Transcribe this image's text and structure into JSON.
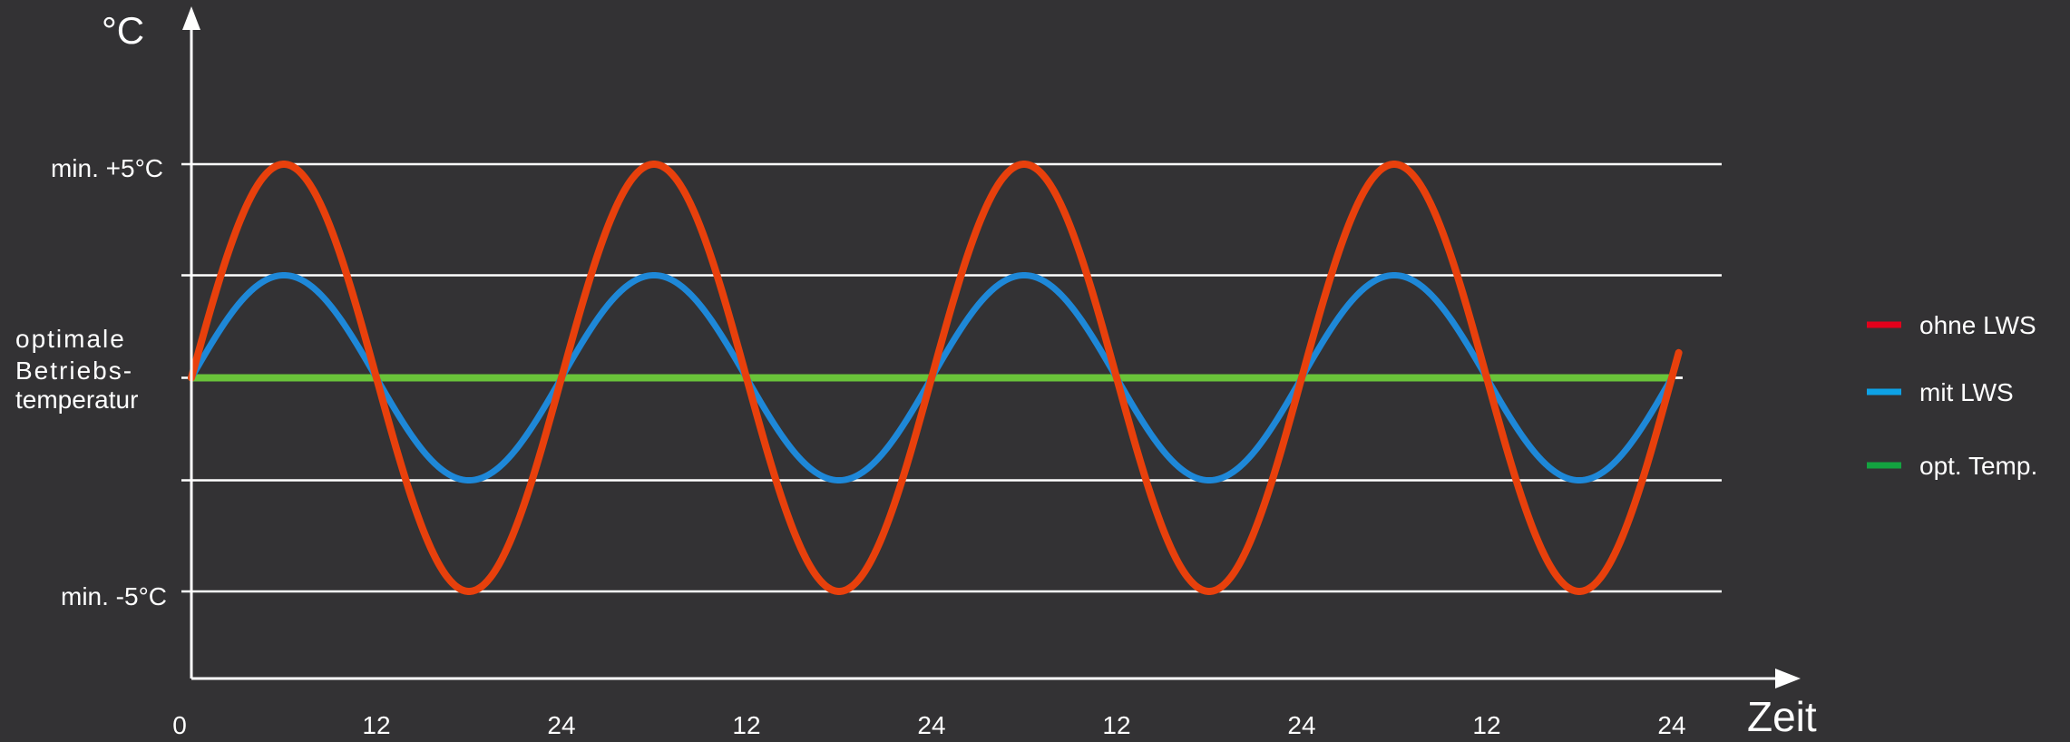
{
  "chart_data": {
    "type": "line",
    "title": "",
    "ylabel": "°C",
    "xlabel": "Zeit",
    "y_tick_labels": {
      "top": "min. +5°C",
      "bottom": "min. -5°C",
      "middle_lines": [
        "optimale",
        "Betriebs-",
        "temperatur"
      ]
    },
    "x_tick_labels": [
      "0",
      "12",
      "24",
      "12",
      "24",
      "12",
      "24",
      "12",
      "24"
    ],
    "x_tick_values": [
      0,
      12,
      24,
      36,
      48,
      60,
      72,
      84,
      96
    ],
    "xlim": [
      0,
      100
    ],
    "ylim": [
      -5,
      5
    ],
    "gridlines_y": [
      5,
      2.4,
      0,
      -2.4,
      -5
    ],
    "grid": true,
    "legend_position": "right",
    "series": [
      {
        "name": "ohne LWS",
        "color": "#e8400c",
        "legend_color": "#e3001b",
        "amplitude": 5,
        "period": 24,
        "x_start": 0,
        "x_end": 96
      },
      {
        "name": "mit LWS",
        "color": "#1e88d8",
        "legend_color": "#0ea2e6",
        "amplitude": 2.4,
        "period": 24,
        "x_start": 0,
        "x_end": 96
      },
      {
        "name": "opt. Temp.",
        "color": "#6ac43a",
        "legend_color": "#13a340",
        "amplitude": 0,
        "period": 24,
        "x_start": 0,
        "x_end": 96
      }
    ]
  }
}
